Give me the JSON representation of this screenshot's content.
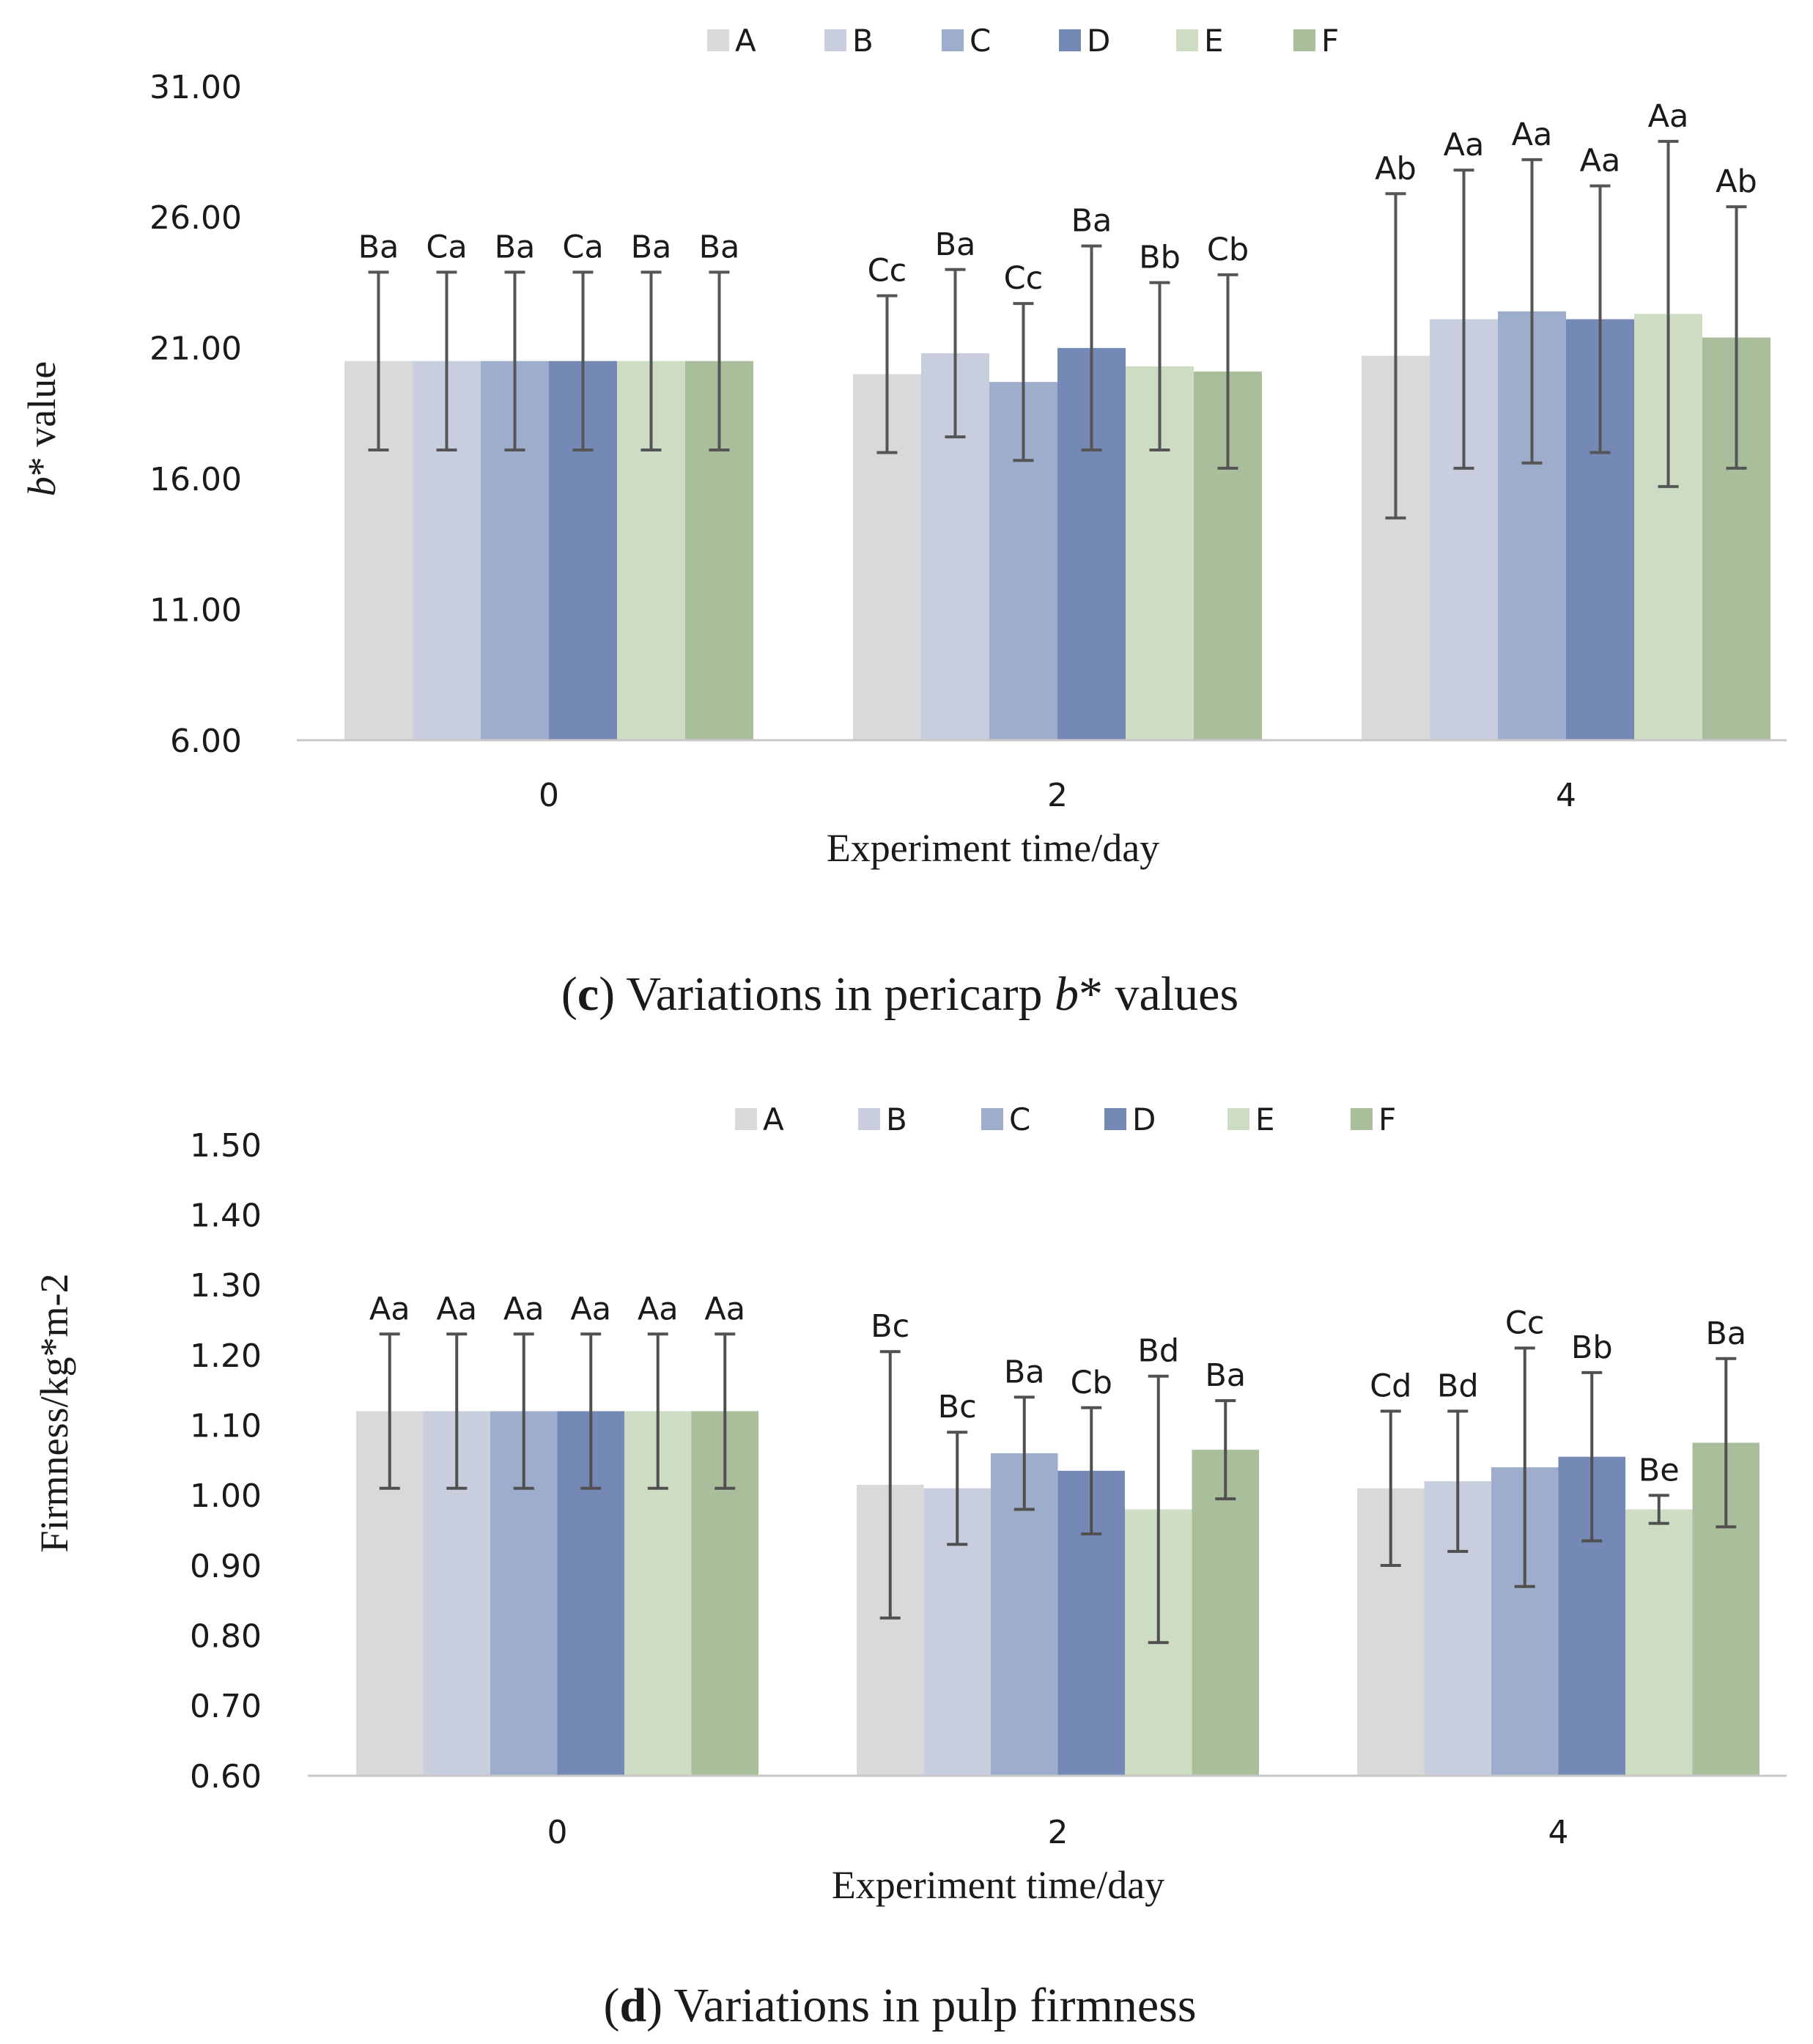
{
  "colors": {
    "A": "#d9d9d9",
    "B": "#c9cedf",
    "C": "#9eadcb",
    "D": "#7589b6",
    "E": "#cfdcc4",
    "F": "#a9bf9b",
    "errorbar_c": "#555555",
    "errorbar_d": "#505050"
  },
  "panels": [
    {
      "caption": {
        "paren_open": "(",
        "letter": "c",
        "paren_close": ")",
        "text_before": " Variations in pericarp ",
        "italic": "b",
        "text_after": "* values"
      },
      "ylabel": {
        "italic": "b",
        "rest": "* value"
      },
      "xlabel": "Experiment time/day"
    },
    {
      "caption": {
        "paren_open": "(",
        "letter": "d",
        "paren_close": ")",
        "text_before": " Variations in pulp firmness",
        "italic": "",
        "text_after": ""
      },
      "ylabel": {
        "italic": "",
        "rest": "Firmness/kg*m-2"
      },
      "xlabel": "Experiment time/day"
    }
  ],
  "chart_data": [
    {
      "type": "bar",
      "categories": [
        "0",
        "2",
        "4"
      ],
      "legend": "top",
      "ylim": [
        6.0,
        31.0
      ],
      "yticks": [
        "6.00",
        "11.00",
        "16.00",
        "21.00",
        "26.00",
        "31.00"
      ],
      "series": [
        {
          "name": "A",
          "values": [
            20.5,
            20.0,
            20.7
          ],
          "errors": [
            3.4,
            3.0,
            6.2
          ],
          "labels": [
            "Ba",
            "Cc",
            "Ab"
          ]
        },
        {
          "name": "B",
          "values": [
            20.5,
            20.8,
            22.1
          ],
          "errors": [
            3.4,
            3.2,
            5.7
          ],
          "labels": [
            "Ca",
            "Ba",
            "Aa"
          ]
        },
        {
          "name": "C",
          "values": [
            20.5,
            19.7,
            22.4
          ],
          "errors": [
            3.4,
            3.0,
            5.8
          ],
          "labels": [
            "Ba",
            "Cc",
            "Aa"
          ]
        },
        {
          "name": "D",
          "values": [
            20.5,
            21.0,
            22.1
          ],
          "errors": [
            3.4,
            3.9,
            5.1
          ],
          "labels": [
            "Ca",
            "Ba",
            "Aa"
          ]
        },
        {
          "name": "E",
          "values": [
            20.5,
            20.3,
            22.3
          ],
          "errors": [
            3.4,
            3.2,
            6.6
          ],
          "labels": [
            "Ba",
            "Bb",
            "Aa"
          ]
        },
        {
          "name": "F",
          "values": [
            20.5,
            20.1,
            21.4
          ],
          "errors": [
            3.4,
            3.7,
            5.0
          ],
          "labels": [
            "Ba",
            "Cb",
            "Ab"
          ]
        }
      ]
    },
    {
      "type": "bar",
      "categories": [
        "0",
        "2",
        "4"
      ],
      "legend": "top",
      "ylim": [
        0.6,
        1.5
      ],
      "yticks": [
        "0.60",
        "0.70",
        "0.80",
        "0.90",
        "1.00",
        "1.10",
        "1.20",
        "1.30",
        "1.40",
        "1.50"
      ],
      "series": [
        {
          "name": "A",
          "values": [
            1.12,
            1.015,
            1.01
          ],
          "errors": [
            0.11,
            0.19,
            0.11
          ],
          "labels": [
            "Aa",
            "Bc",
            "Cd"
          ]
        },
        {
          "name": "B",
          "values": [
            1.12,
            1.01,
            1.02
          ],
          "errors": [
            0.11,
            0.08,
            0.1
          ],
          "labels": [
            "Aa",
            "Bc",
            "Bd"
          ]
        },
        {
          "name": "C",
          "values": [
            1.12,
            1.06,
            1.04
          ],
          "errors": [
            0.11,
            0.08,
            0.17
          ],
          "labels": [
            "Aa",
            "Ba",
            "Cc"
          ]
        },
        {
          "name": "D",
          "values": [
            1.12,
            1.035,
            1.055
          ],
          "errors": [
            0.11,
            0.09,
            0.12
          ],
          "labels": [
            "Aa",
            "Cb",
            "Bb"
          ]
        },
        {
          "name": "E",
          "values": [
            1.12,
            0.98,
            0.98
          ],
          "errors": [
            0.11,
            0.19,
            0.02
          ],
          "labels": [
            "Aa",
            "Bd",
            "Be"
          ]
        },
        {
          "name": "F",
          "values": [
            1.12,
            1.065,
            1.075
          ],
          "errors": [
            0.11,
            0.07,
            0.12
          ],
          "labels": [
            "Aa",
            "Ba",
            "Ba"
          ]
        }
      ]
    }
  ]
}
